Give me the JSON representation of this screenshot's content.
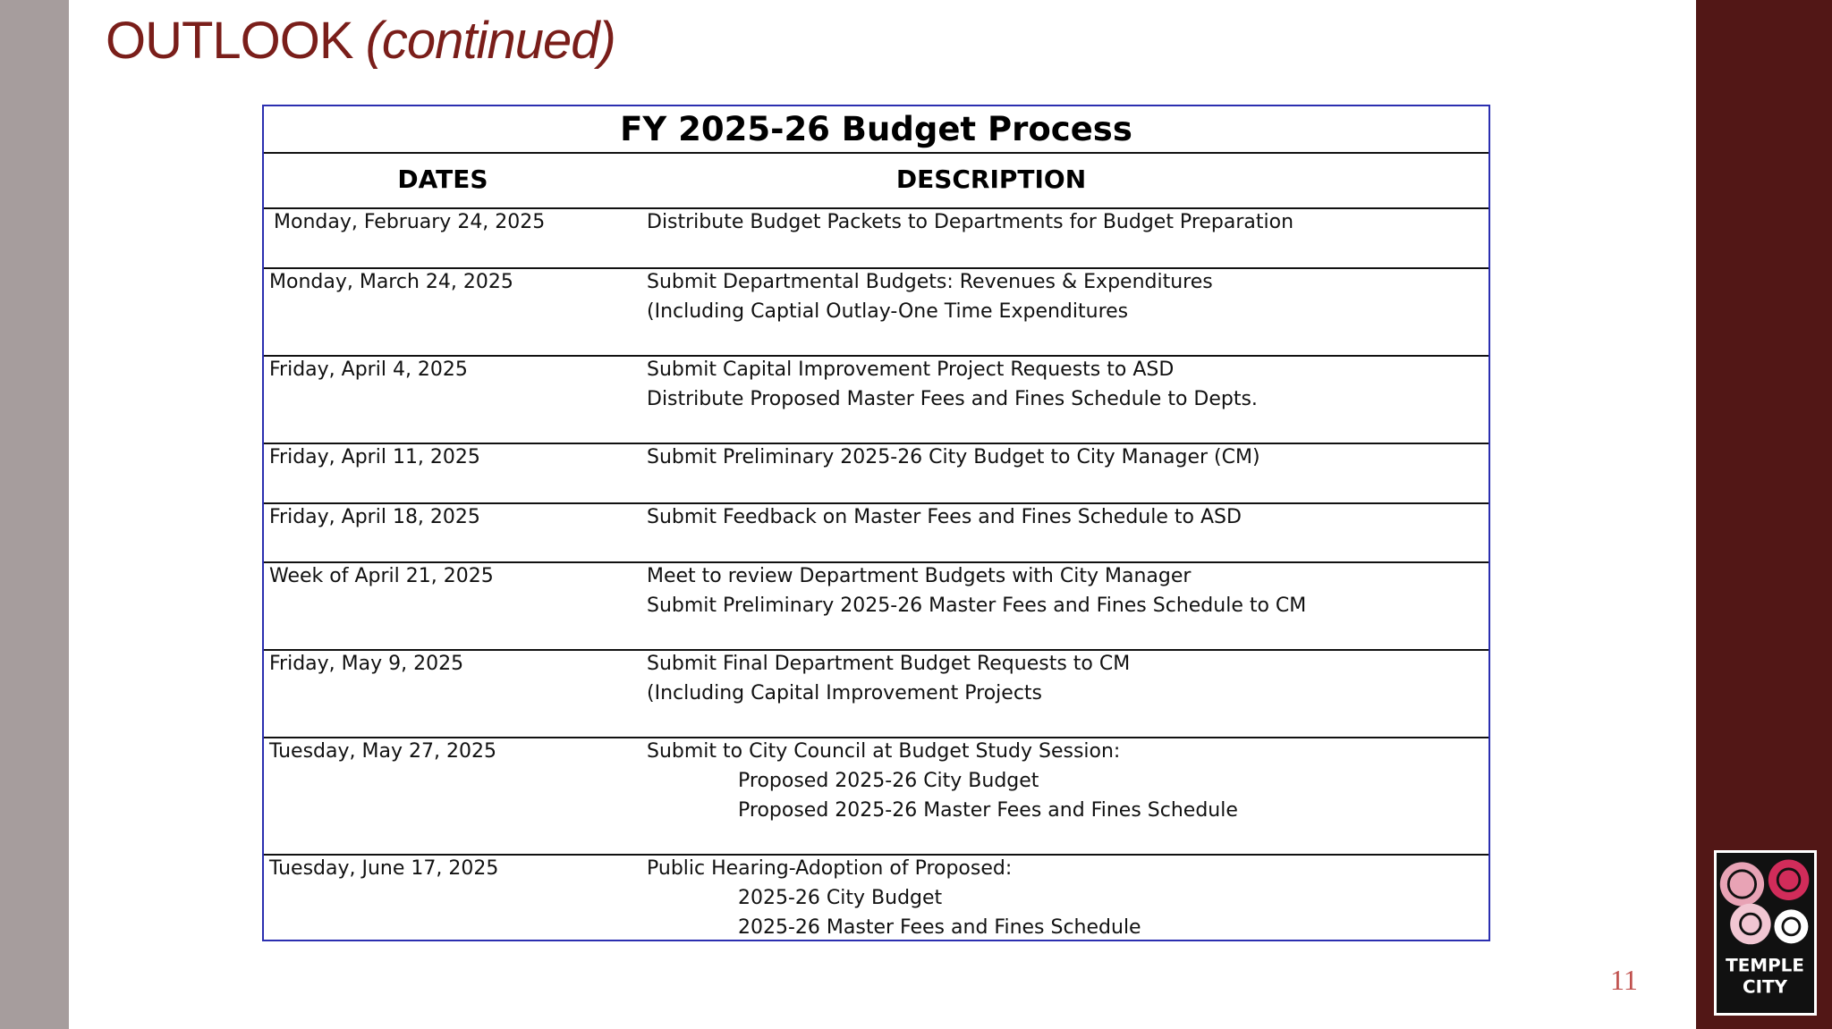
{
  "slide": {
    "title": {
      "main": "OUTLOOK",
      "emphasis": "(continued)"
    },
    "page_number": "11"
  },
  "table": {
    "title": "FY 2025-26 Budget Process",
    "headers": [
      "DATES",
      "DESCRIPTION"
    ],
    "rows": [
      {
        "date": "Monday, February 24, 2025",
        "lines": [
          "Distribute Budget Packets to Departments for Budget Preparation"
        ]
      },
      {
        "date": "Monday, March 24, 2025",
        "lines": [
          "Submit Departmental Budgets: Revenues & Expenditures",
          "(Including Captial Outlay-One Time Expenditures"
        ]
      },
      {
        "date": "Friday, April 4, 2025",
        "lines": [
          "Submit Capital Improvement Project Requests to ASD",
          "Distribute Proposed Master Fees and Fines Schedule to Depts."
        ]
      },
      {
        "date": "Friday, April 11, 2025",
        "lines": [
          "Submit Preliminary 2025-26 City Budget to City Manager (CM)"
        ]
      },
      {
        "date": "Friday, April 18, 2025",
        "lines": [
          "Submit Feedback on Master Fees and Fines Schedule to ASD"
        ]
      },
      {
        "date": "Week of April 21, 2025",
        "lines": [
          "Meet to review Department Budgets with City Manager",
          "Submit Preliminary 2025-26 Master Fees and Fines Schedule to CM"
        ]
      },
      {
        "date": "Friday, May 9, 2025",
        "lines": [
          "Submit Final Department Budget Requests to CM",
          "(Including Capital Improvement Projects"
        ]
      },
      {
        "date": "Tuesday, May 27, 2025",
        "lines": [
          "Submit to City Council at Budget Study Session:"
        ],
        "items": [
          "Proposed 2025-26 City Budget",
          "Proposed 2025-26 Master Fees and Fines Schedule"
        ]
      },
      {
        "date": "Tuesday, June 17, 2025",
        "lines": [
          "Public Hearing-Adoption of Proposed:"
        ],
        "items": [
          "2025-26 City Budget",
          "2025-26 Master Fees and Fines Schedule"
        ]
      }
    ]
  },
  "logo": {
    "line1": "TEMPLE",
    "line2": "CITY"
  }
}
